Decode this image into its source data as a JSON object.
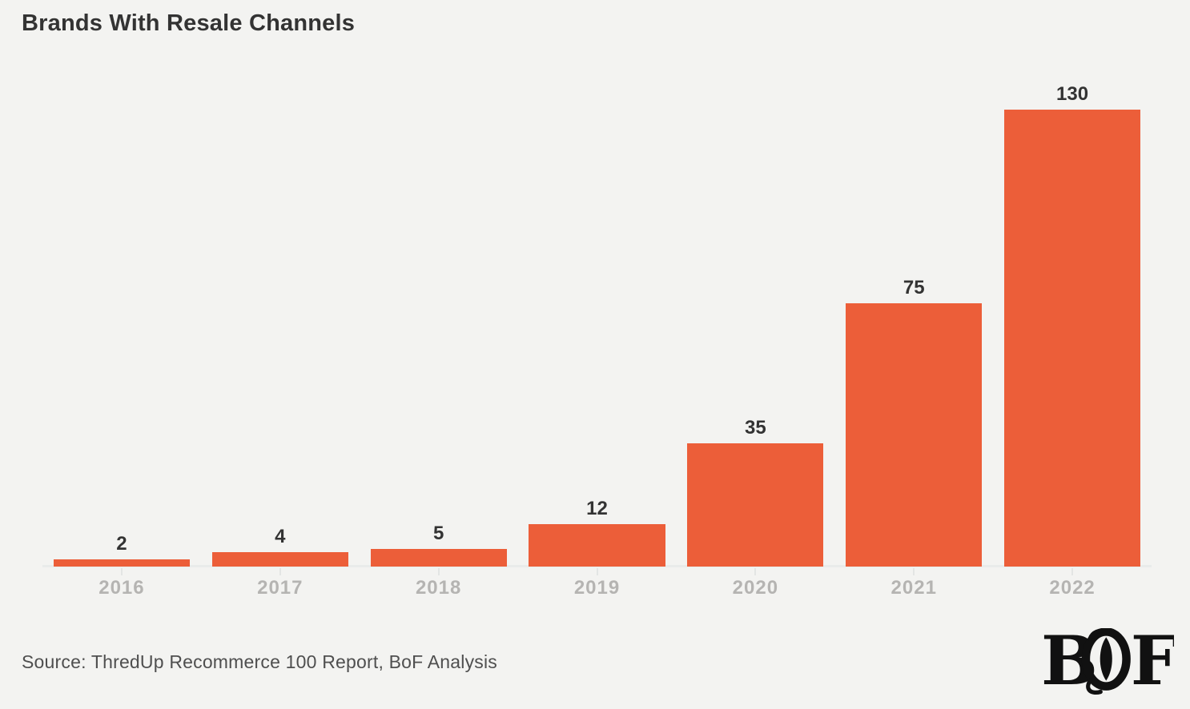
{
  "title": "Brands With Resale Channels",
  "source": "Source: ThredUp Recommerce 100 Report, BoF Analysis",
  "logo": {
    "b": "B",
    "f": "F"
  },
  "colors": {
    "background": "#F3F3F1",
    "bar": "#EC5E39",
    "title": "#333333",
    "value_label": "#333333",
    "year_label": "#B5B4B2",
    "axis_line": "#E9EBEA",
    "tick": "#E3E5E4",
    "source_text": "#4F4F4F",
    "logo": "#111111"
  },
  "chart_data": {
    "type": "bar",
    "categories": [
      "2016",
      "2017",
      "2018",
      "2019",
      "2020",
      "2021",
      "2022"
    ],
    "values": [
      2,
      4,
      5,
      12,
      35,
      75,
      130
    ],
    "title": "Brands With Resale Channels",
    "xlabel": "",
    "ylabel": "",
    "ylim": [
      0,
      130
    ],
    "grid": false,
    "legend": false,
    "bar_color": "#EC5E39",
    "value_labels_shown": true,
    "x_axis_labels_shown": true,
    "y_axis_shown": false
  }
}
